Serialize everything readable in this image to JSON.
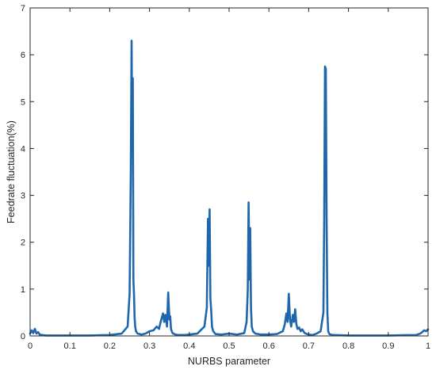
{
  "chart_data": {
    "type": "line",
    "title": "",
    "xlabel": "NURBS parameter",
    "ylabel": "Feedrate fluctuation(%)",
    "xlim": [
      0,
      1
    ],
    "ylim": [
      0,
      7
    ],
    "xticks": [
      0,
      0.1,
      0.2,
      0.3,
      0.4,
      0.5,
      0.6,
      0.7,
      0.8,
      0.9,
      1
    ],
    "xtick_labels": [
      "0",
      "0.1",
      "0.2",
      "0.3",
      "0.4",
      "0.5",
      "0.6",
      "0.7",
      "0.8",
      "0.9",
      "1"
    ],
    "yticks": [
      0,
      1,
      2,
      3,
      4,
      5,
      6,
      7
    ],
    "ytick_labels": [
      "0",
      "1",
      "2",
      "3",
      "4",
      "5",
      "6",
      "7"
    ],
    "grid": false,
    "line_color": "#1f66ad",
    "series": [
      {
        "x": [
          0,
          0.004,
          0.008,
          0.012,
          0.016,
          0.02,
          0.024,
          0.03,
          0.04,
          0.08,
          0.15,
          0.2,
          0.23,
          0.245,
          0.25,
          0.253,
          0.255,
          0.2565,
          0.258,
          0.2595,
          0.261,
          0.2625,
          0.264,
          0.266,
          0.27,
          0.28,
          0.29,
          0.3,
          0.31,
          0.318,
          0.324,
          0.328,
          0.334,
          0.337,
          0.34,
          0.344,
          0.347,
          0.35,
          0.352,
          0.354,
          0.356,
          0.358,
          0.362,
          0.37,
          0.39,
          0.42,
          0.438,
          0.444,
          0.447,
          0.449,
          0.451,
          0.453,
          0.455,
          0.457,
          0.46,
          0.466,
          0.48,
          0.5,
          0.52,
          0.538,
          0.544,
          0.547,
          0.549,
          0.551,
          0.553,
          0.555,
          0.557,
          0.56,
          0.566,
          0.58,
          0.6,
          0.62,
          0.635,
          0.64,
          0.644,
          0.647,
          0.65,
          0.653,
          0.656,
          0.66,
          0.663,
          0.666,
          0.669,
          0.672,
          0.676,
          0.68,
          0.684,
          0.688,
          0.692,
          0.696,
          0.7,
          0.71,
          0.72,
          0.73,
          0.737,
          0.739,
          0.741,
          0.743,
          0.745,
          0.747,
          0.749,
          0.752,
          0.76,
          0.8,
          0.9,
          0.97,
          0.98,
          0.985,
          0.99,
          0.995,
          1.0
        ],
        "y": [
          0.05,
          0.12,
          0.06,
          0.15,
          0.05,
          0.08,
          0.03,
          0.02,
          0.01,
          0.01,
          0.01,
          0.02,
          0.05,
          0.2,
          0.9,
          3.5,
          6.3,
          4.0,
          5.5,
          1.2,
          0.9,
          0.4,
          0.2,
          0.1,
          0.05,
          0.03,
          0.05,
          0.1,
          0.12,
          0.2,
          0.15,
          0.3,
          0.48,
          0.3,
          0.45,
          0.2,
          0.93,
          0.35,
          0.42,
          0.15,
          0.1,
          0.06,
          0.04,
          0.02,
          0.02,
          0.05,
          0.2,
          0.6,
          2.5,
          1.5,
          2.7,
          0.8,
          0.55,
          0.2,
          0.1,
          0.04,
          0.03,
          0.05,
          0.03,
          0.06,
          0.3,
          1.0,
          2.85,
          1.2,
          2.3,
          0.6,
          0.2,
          0.1,
          0.05,
          0.03,
          0.03,
          0.04,
          0.1,
          0.25,
          0.48,
          0.3,
          0.9,
          0.35,
          0.2,
          0.45,
          0.3,
          0.57,
          0.25,
          0.15,
          0.18,
          0.1,
          0.14,
          0.08,
          0.05,
          0.04,
          0.03,
          0.02,
          0.05,
          0.1,
          0.5,
          2.5,
          5.75,
          5.7,
          2.5,
          0.5,
          0.1,
          0.04,
          0.02,
          0.01,
          0.01,
          0.02,
          0.05,
          0.08,
          0.12,
          0.1,
          0.14
        ]
      }
    ]
  }
}
